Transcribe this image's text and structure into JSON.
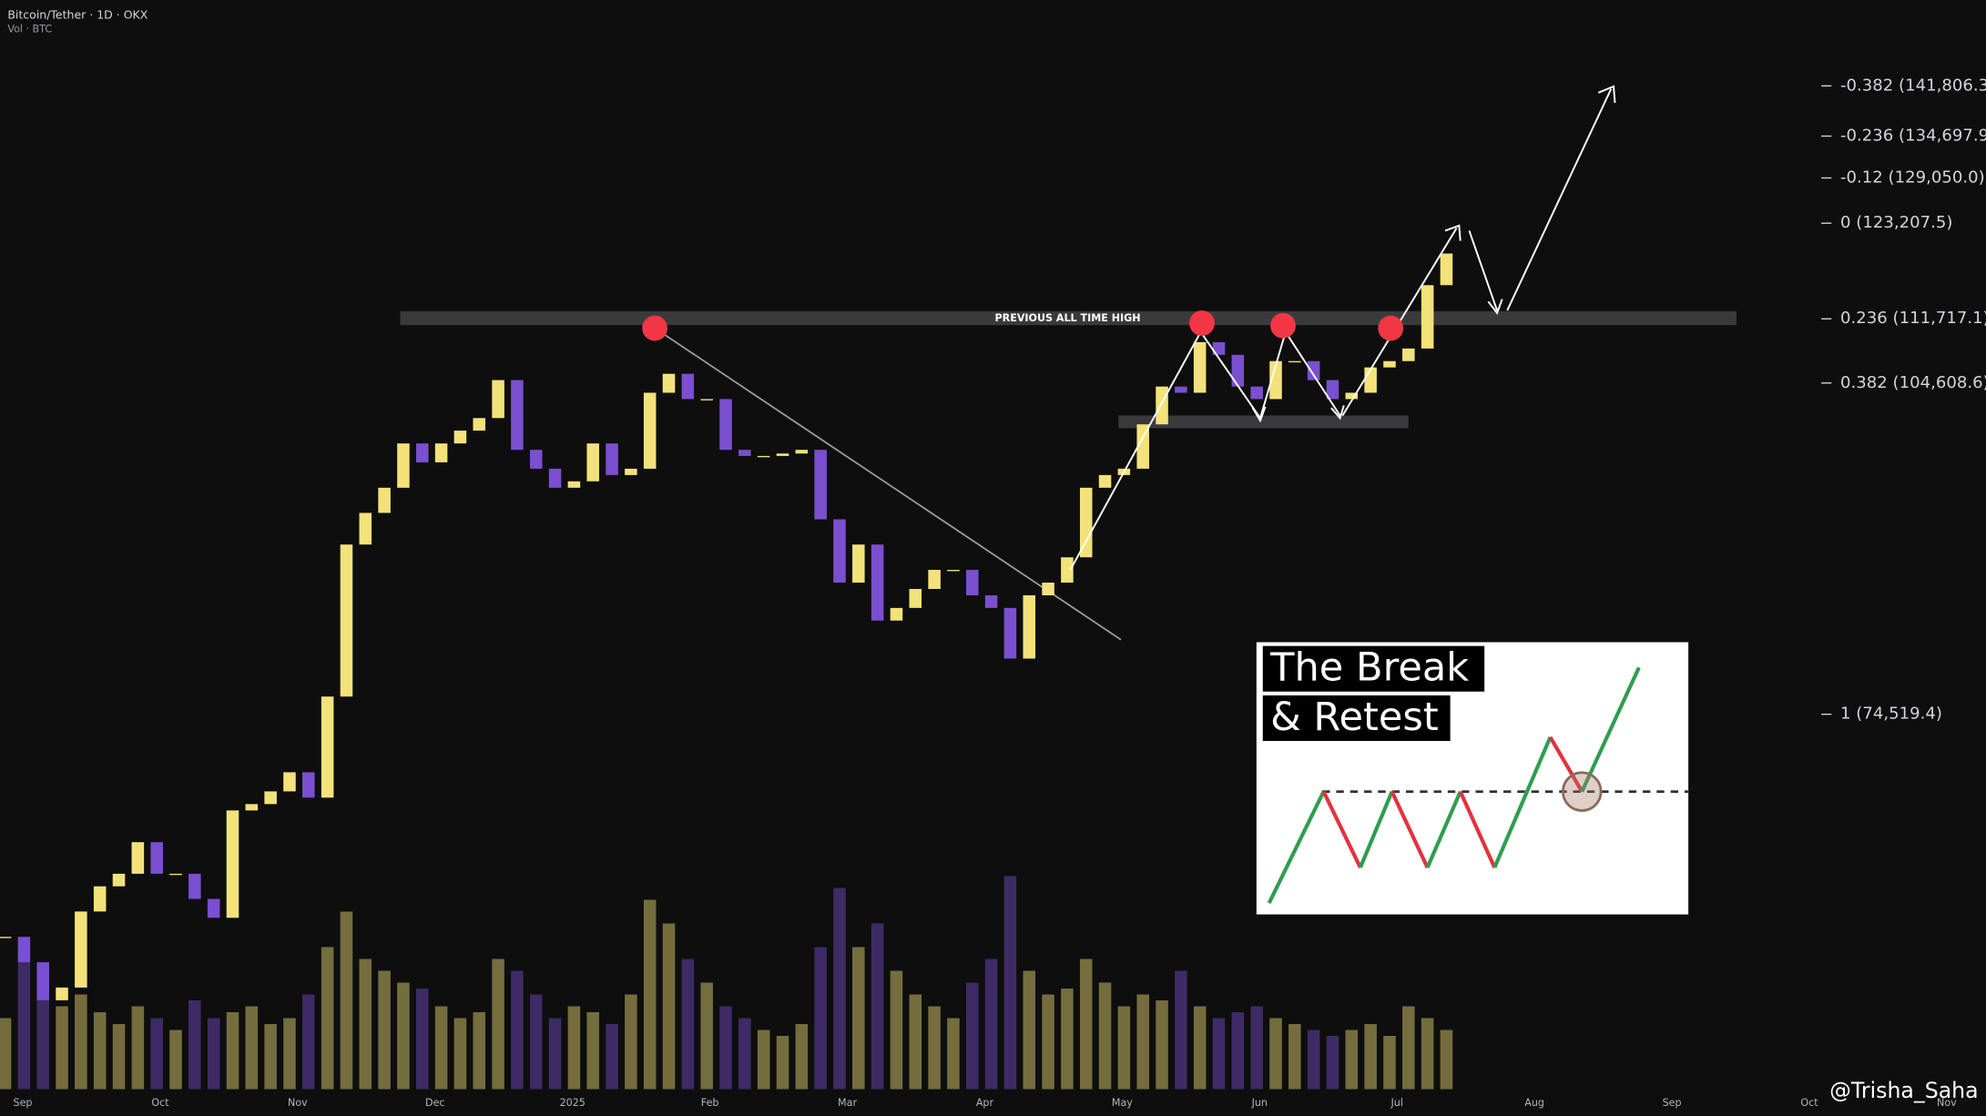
{
  "header": {
    "symbol": "Bitcoin/Tether · 1D · OKX",
    "volume_label": "Vol · BTC"
  },
  "chart_data": {
    "type": "candlestick",
    "log_scale": true,
    "ylim": [
      49400,
      154800
    ],
    "close": [
      59330,
      57810,
      55600,
      56330,
      60890,
      62480,
      63290,
      65370,
      63290,
      63290,
      61680,
      60500,
      67530,
      67970,
      68860,
      70220,
      68420,
      75880,
      88660,
      91580,
      93970,
      98330,
      96450,
      98330,
      99630,
      100920,
      104920,
      97690,
      95820,
      93970,
      94590,
      98330,
      95200,
      95820,
      103570,
      105600,
      102900,
      102900,
      97690,
      97080,
      97080,
      97320,
      97690,
      90980,
      85270,
      88660,
      82020,
      83090,
      84720,
      86390,
      86390,
      84170,
      83090,
      78890,
      84170,
      85270,
      87510,
      93970,
      95200,
      95820,
      100270,
      104230,
      103570,
      109080,
      107670,
      104230,
      102900,
      106980,
      106980,
      104920,
      102900,
      103570,
      106290,
      106980,
      108370,
      115630,
      119440
    ],
    "volume": [
      60,
      110,
      90,
      70,
      80,
      65,
      55,
      70,
      60,
      50,
      75,
      60,
      65,
      70,
      55,
      60,
      80,
      120,
      150,
      110,
      100,
      90,
      85,
      70,
      60,
      65,
      110,
      100,
      80,
      60,
      70,
      65,
      55,
      80,
      160,
      140,
      110,
      90,
      70,
      60,
      50,
      45,
      55,
      120,
      170,
      120,
      140,
      100,
      80,
      70,
      60,
      90,
      110,
      180,
      100,
      80,
      85,
      110,
      90,
      70,
      80,
      75,
      100,
      70,
      60,
      65,
      70,
      60,
      55,
      50,
      45,
      50,
      55,
      45,
      70,
      60,
      50
    ],
    "volume_lim": [
      0,
      230
    ],
    "up_color": "#f3e27a",
    "down_color": "#7a4fd0",
    "xticks": [
      "Sep",
      "Oct",
      "Nov",
      "Dec",
      "2025",
      "Feb",
      "Mar",
      "Apr",
      "May",
      "Jun",
      "Jul",
      "Aug",
      "Sep",
      "Oct",
      "Nov"
    ],
    "fib_levels": [
      {
        "value": 141806.3,
        "label": "-0.382 (141,806.3"
      },
      {
        "value": 134697.9,
        "label": "-0.236 (134,697.9"
      },
      {
        "value": 129050.0,
        "label": "-0.12 (129,050.0)"
      },
      {
        "value": 123207.5,
        "label": "0 (123,207.5)"
      },
      {
        "value": 111717.1,
        "label": "0.236 (111,717.1)"
      },
      {
        "value": 104608.6,
        "label": "0.382 (104,608.6)"
      },
      {
        "value": 74519.4,
        "label": "1 (74,519.4)"
      }
    ],
    "resistance": {
      "value": 111717.1,
      "label": "PREVIOUS ALL TIME HIGH"
    },
    "support": {
      "value": 100530
    }
  },
  "inset": {
    "line1": "The Break",
    "line2": "& Retest"
  },
  "watermark": "@Trisha_Saha"
}
